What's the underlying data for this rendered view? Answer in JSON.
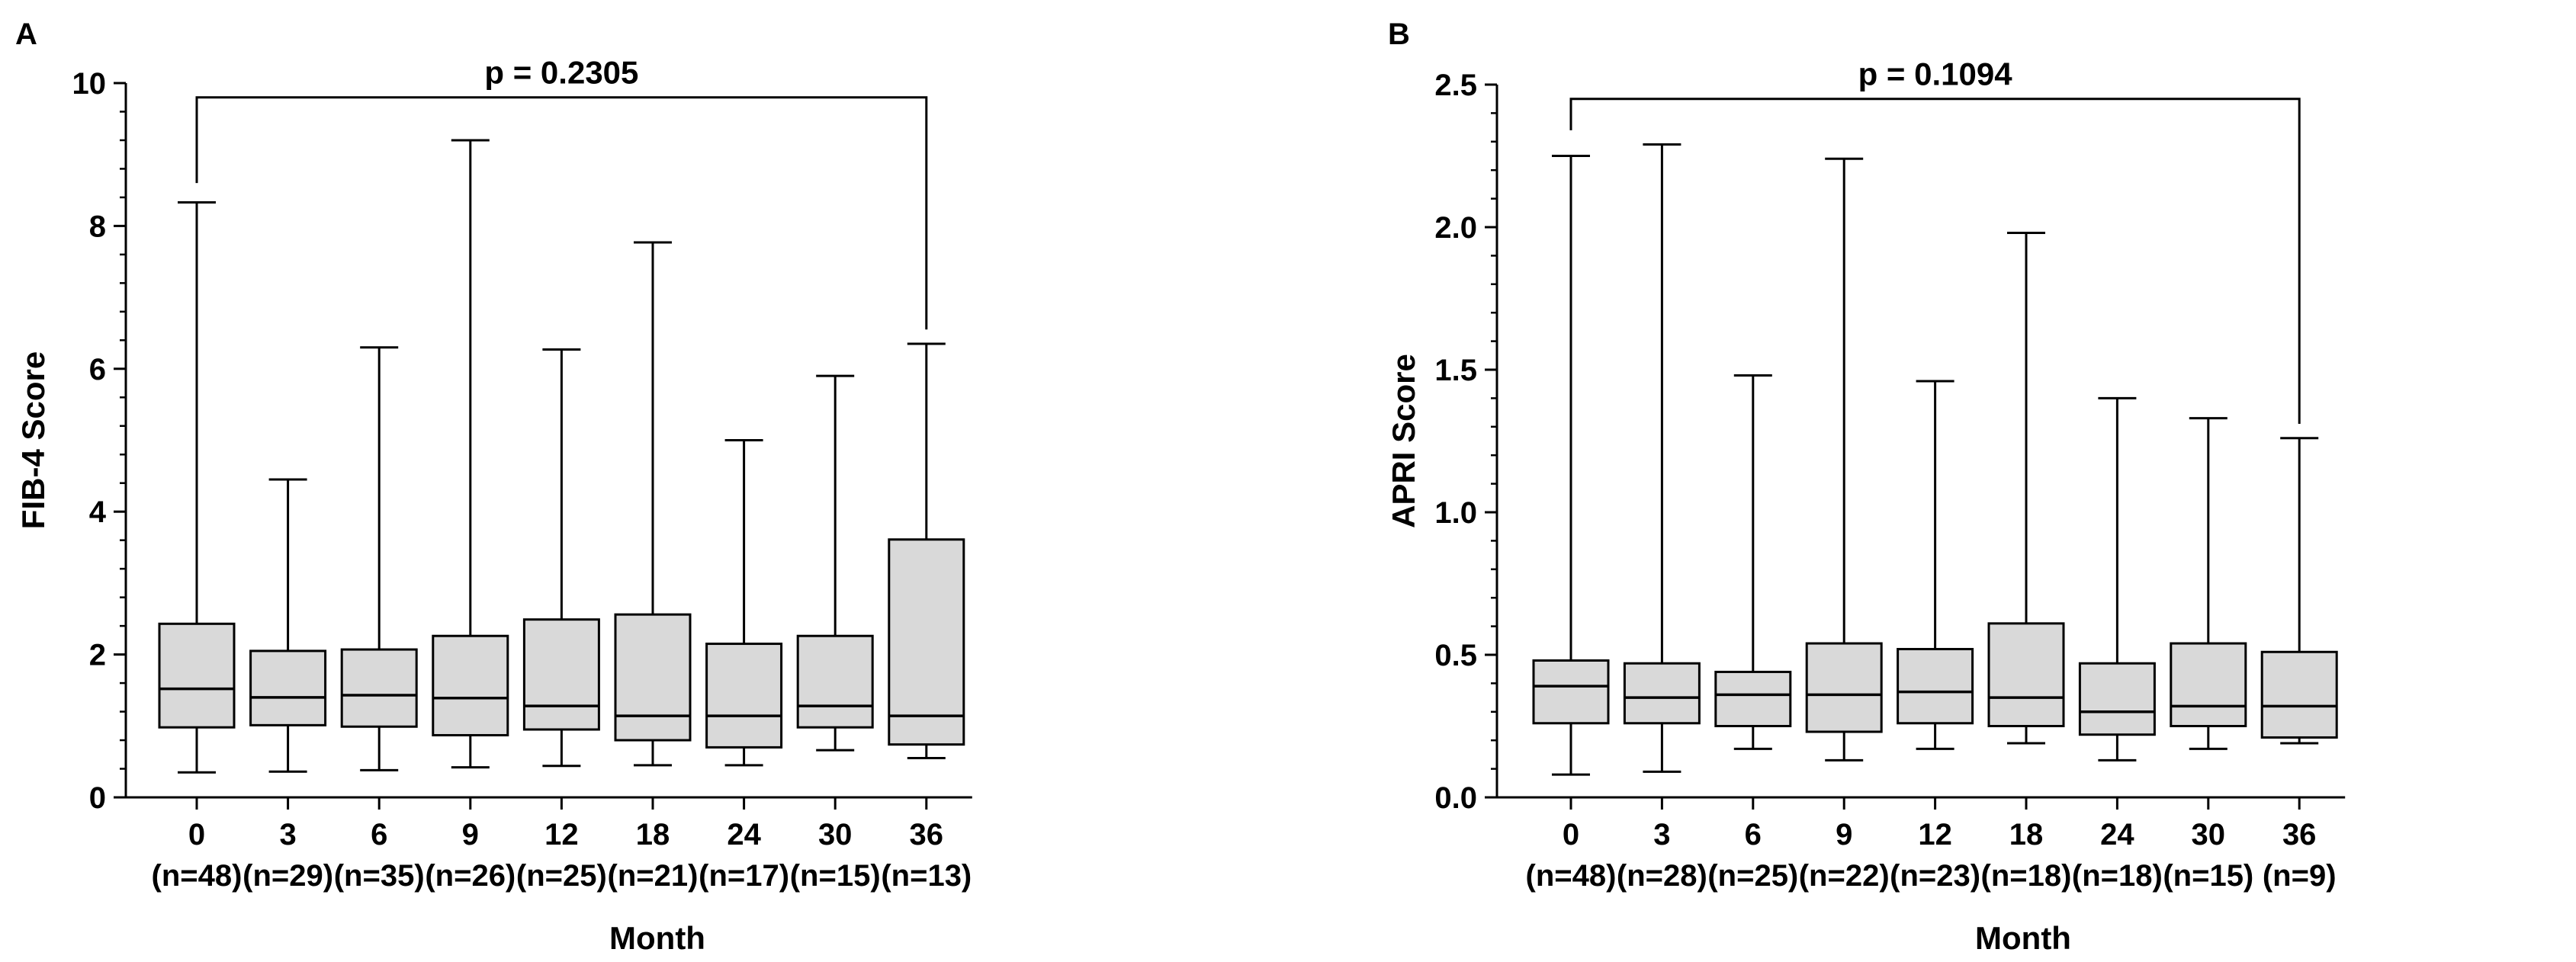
{
  "figure": {
    "background": "#ffffff",
    "box_fill": "#d9d9d9",
    "line_color": "#000000"
  },
  "chart_data": [
    {
      "type": "box",
      "panel_label": "A",
      "title": "",
      "xlabel": "Month",
      "ylabel": "FIB-4 Score",
      "ylim": [
        0,
        10
      ],
      "yticks": [
        0,
        2,
        4,
        6,
        8,
        10
      ],
      "categories": [
        "0",
        "3",
        "6",
        "9",
        "12",
        "18",
        "24",
        "30",
        "36"
      ],
      "n_labels": [
        "(n=48)",
        "(n=29)",
        "(n=35)",
        "(n=26)",
        "(n=25)",
        "(n=21)",
        "(n=17)",
        "(n=15)",
        "(n=13)"
      ],
      "boxes": [
        {
          "min": 0.35,
          "q1": 0.98,
          "median": 1.52,
          "q3": 2.43,
          "max": 8.33
        },
        {
          "min": 0.36,
          "q1": 1.01,
          "median": 1.4,
          "q3": 2.05,
          "max": 4.45
        },
        {
          "min": 0.38,
          "q1": 0.99,
          "median": 1.43,
          "q3": 2.07,
          "max": 6.3
        },
        {
          "min": 0.42,
          "q1": 0.87,
          "median": 1.39,
          "q3": 2.26,
          "max": 9.2
        },
        {
          "min": 0.44,
          "q1": 0.95,
          "median": 1.28,
          "q3": 2.49,
          "max": 6.27
        },
        {
          "min": 0.45,
          "q1": 0.8,
          "median": 1.14,
          "q3": 2.56,
          "max": 7.77
        },
        {
          "min": 0.45,
          "q1": 0.7,
          "median": 1.14,
          "q3": 2.15,
          "max": 5.0
        },
        {
          "min": 0.66,
          "q1": 0.98,
          "median": 1.28,
          "q3": 2.26,
          "max": 5.9
        },
        {
          "min": 0.55,
          "q1": 0.74,
          "median": 1.14,
          "q3": 3.61,
          "max": 6.35
        }
      ],
      "comparison": {
        "from": "0",
        "to": "36",
        "label": "p = 0.2305",
        "y": 9.8,
        "drop_left": 8.6,
        "drop_right": 6.55
      }
    },
    {
      "type": "box",
      "panel_label": "B",
      "title": "",
      "xlabel": "Month",
      "ylabel": "APRI Score",
      "ylim": [
        0,
        2.5
      ],
      "yticks": [
        "0.0",
        "0.5",
        "1.0",
        "1.5",
        "2.0",
        "2.5"
      ],
      "categories": [
        "0",
        "3",
        "6",
        "9",
        "12",
        "18",
        "24",
        "30",
        "36"
      ],
      "n_labels": [
        "(n=48)",
        "(n=28)",
        "(n=25)",
        "(n=22)",
        "(n=23)",
        "(n=18)",
        "(n=18)",
        "(n=15)",
        "(n=9)"
      ],
      "boxes": [
        {
          "min": 0.08,
          "q1": 0.26,
          "median": 0.39,
          "q3": 0.48,
          "max": 2.25
        },
        {
          "min": 0.09,
          "q1": 0.26,
          "median": 0.35,
          "q3": 0.47,
          "max": 2.29
        },
        {
          "min": 0.17,
          "q1": 0.25,
          "median": 0.36,
          "q3": 0.44,
          "max": 1.48
        },
        {
          "min": 0.13,
          "q1": 0.23,
          "median": 0.36,
          "q3": 0.54,
          "max": 2.24
        },
        {
          "min": 0.17,
          "q1": 0.26,
          "median": 0.37,
          "q3": 0.52,
          "max": 1.46
        },
        {
          "min": 0.19,
          "q1": 0.25,
          "median": 0.35,
          "q3": 0.61,
          "max": 1.98
        },
        {
          "min": 0.13,
          "q1": 0.22,
          "median": 0.3,
          "q3": 0.47,
          "max": 1.4
        },
        {
          "min": 0.17,
          "q1": 0.25,
          "median": 0.32,
          "q3": 0.54,
          "max": 1.33
        },
        {
          "min": 0.19,
          "q1": 0.21,
          "median": 0.32,
          "q3": 0.51,
          "max": 1.26
        }
      ],
      "comparison": {
        "from": "0",
        "to": "36",
        "label": "p = 0.1094",
        "y": 2.45,
        "drop_left": 2.34,
        "drop_right": 1.31
      }
    }
  ]
}
